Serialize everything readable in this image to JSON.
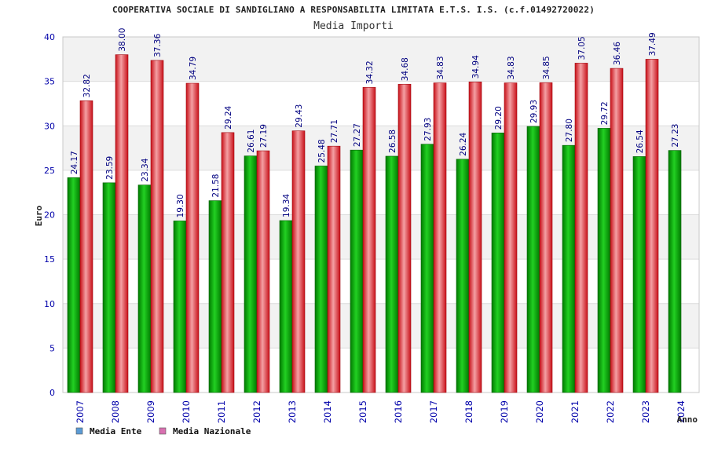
{
  "chart_data": {
    "type": "bar",
    "title": "COOPERATIVA SOCIALE DI SANDIGLIANO A RESPONSABILITA LIMITATA E.T.S. I.S. (c.f.01492720022)",
    "subtitle": "Media Importi",
    "xlabel": "Anno",
    "ylabel": "Euro",
    "ylim": [
      0,
      40
    ],
    "yticks": [
      0,
      5,
      10,
      15,
      20,
      25,
      30,
      35,
      40
    ],
    "grid": true,
    "legend_position": "bottom-left",
    "categories": [
      "2007",
      "2008",
      "2009",
      "2010",
      "2011",
      "2012",
      "2013",
      "2014",
      "2015",
      "2016",
      "2017",
      "2018",
      "2019",
      "2020",
      "2021",
      "2022",
      "2023",
      "2024"
    ],
    "series": [
      {
        "name": "Media Ente",
        "color": "#00b000",
        "values": [
          24.17,
          23.59,
          23.34,
          19.3,
          21.58,
          26.61,
          19.34,
          25.48,
          27.27,
          26.58,
          27.93,
          26.24,
          29.2,
          29.93,
          27.8,
          29.72,
          26.54,
          27.23
        ],
        "labels": [
          "24.17",
          "23.59",
          "23.34",
          "19.30",
          "21.58",
          "26.61",
          "19.34",
          "25.48",
          "27.27",
          "26.58",
          "27.93",
          "26.24",
          "29.20",
          "29.93",
          "27.80",
          "29.72",
          "26.54",
          "27.23"
        ]
      },
      {
        "name": "Media Nazionale",
        "color": "#e8242c",
        "values": [
          32.82,
          38.0,
          37.36,
          34.79,
          29.24,
          27.19,
          29.43,
          27.71,
          34.32,
          34.68,
          34.83,
          34.94,
          34.83,
          34.85,
          37.05,
          36.46,
          37.49,
          null
        ],
        "labels": [
          "32.82",
          "38.00",
          "37.36",
          "34.79",
          "29.24",
          "27.19",
          "29.43",
          "27.71",
          "34.32",
          "34.68",
          "34.83",
          "34.94",
          "34.83",
          "34.85",
          "37.05",
          "36.46",
          "37.49",
          ""
        ]
      }
    ],
    "legend": [
      {
        "label": "Media Ente",
        "swatch_color": "#5b9bd5"
      },
      {
        "label": "Media Nazionale",
        "swatch_color": "#d870b0"
      }
    ]
  }
}
